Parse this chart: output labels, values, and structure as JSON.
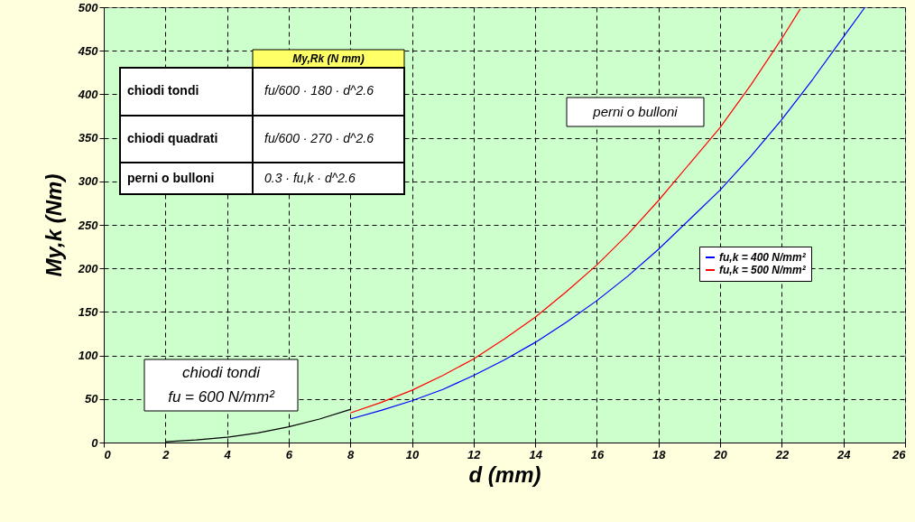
{
  "chart_data": {
    "type": "line",
    "xlabel": "d (mm)",
    "ylabel": "My,k (Nm)",
    "xlim": [
      0,
      26
    ],
    "xticks": [
      0,
      2,
      4,
      6,
      8,
      10,
      12,
      14,
      16,
      18,
      20,
      22,
      24,
      26
    ],
    "ylim": [
      0,
      500
    ],
    "yticks": [
      0,
      50,
      100,
      150,
      200,
      250,
      300,
      350,
      400,
      450,
      500
    ],
    "grid": true,
    "legend": "right",
    "marker": "none",
    "line_style": "solid",
    "series": [
      {
        "color": "#000000",
        "x": [
          2,
          3,
          4,
          5,
          6,
          7,
          8
        ],
        "values": [
          1,
          3,
          6,
          11,
          18,
          27,
          38
        ]
      },
      {
        "name": "fu,k = 400 N/mm²",
        "color": "#0000ff",
        "x": [
          8,
          9,
          10,
          11,
          12,
          13,
          14,
          15,
          16,
          17,
          18,
          19,
          20,
          21,
          22,
          23,
          24,
          24.7
        ],
        "values": [
          27,
          37,
          48,
          61,
          77,
          95,
          115,
          138,
          163,
          191,
          222,
          256,
          290,
          329,
          371,
          417,
          466,
          500
        ]
      },
      {
        "name": "fu,k = 500 N/mm²",
        "color": "#ff0000",
        "x": [
          8,
          9,
          10,
          11,
          12,
          13,
          14,
          15,
          16,
          17,
          18,
          19,
          20,
          21,
          22,
          22.6
        ],
        "values": [
          34,
          46,
          60,
          77,
          96,
          119,
          144,
          173,
          204,
          239,
          278,
          320,
          362,
          411,
          464,
          498
        ]
      }
    ],
    "annotations": [
      "My,Rk (N mm)",
      "chiodi tondi",
      "chiodi quadrati",
      "perni o bulloni",
      "fu/600 · 180 · d^2.6",
      "fu/600 · 270 · d^2.6",
      "0.3 · fu,k · d^2.6",
      "perni o bulloni",
      "chiodi tondi",
      "fu = 600 N/mm²"
    ]
  }
}
